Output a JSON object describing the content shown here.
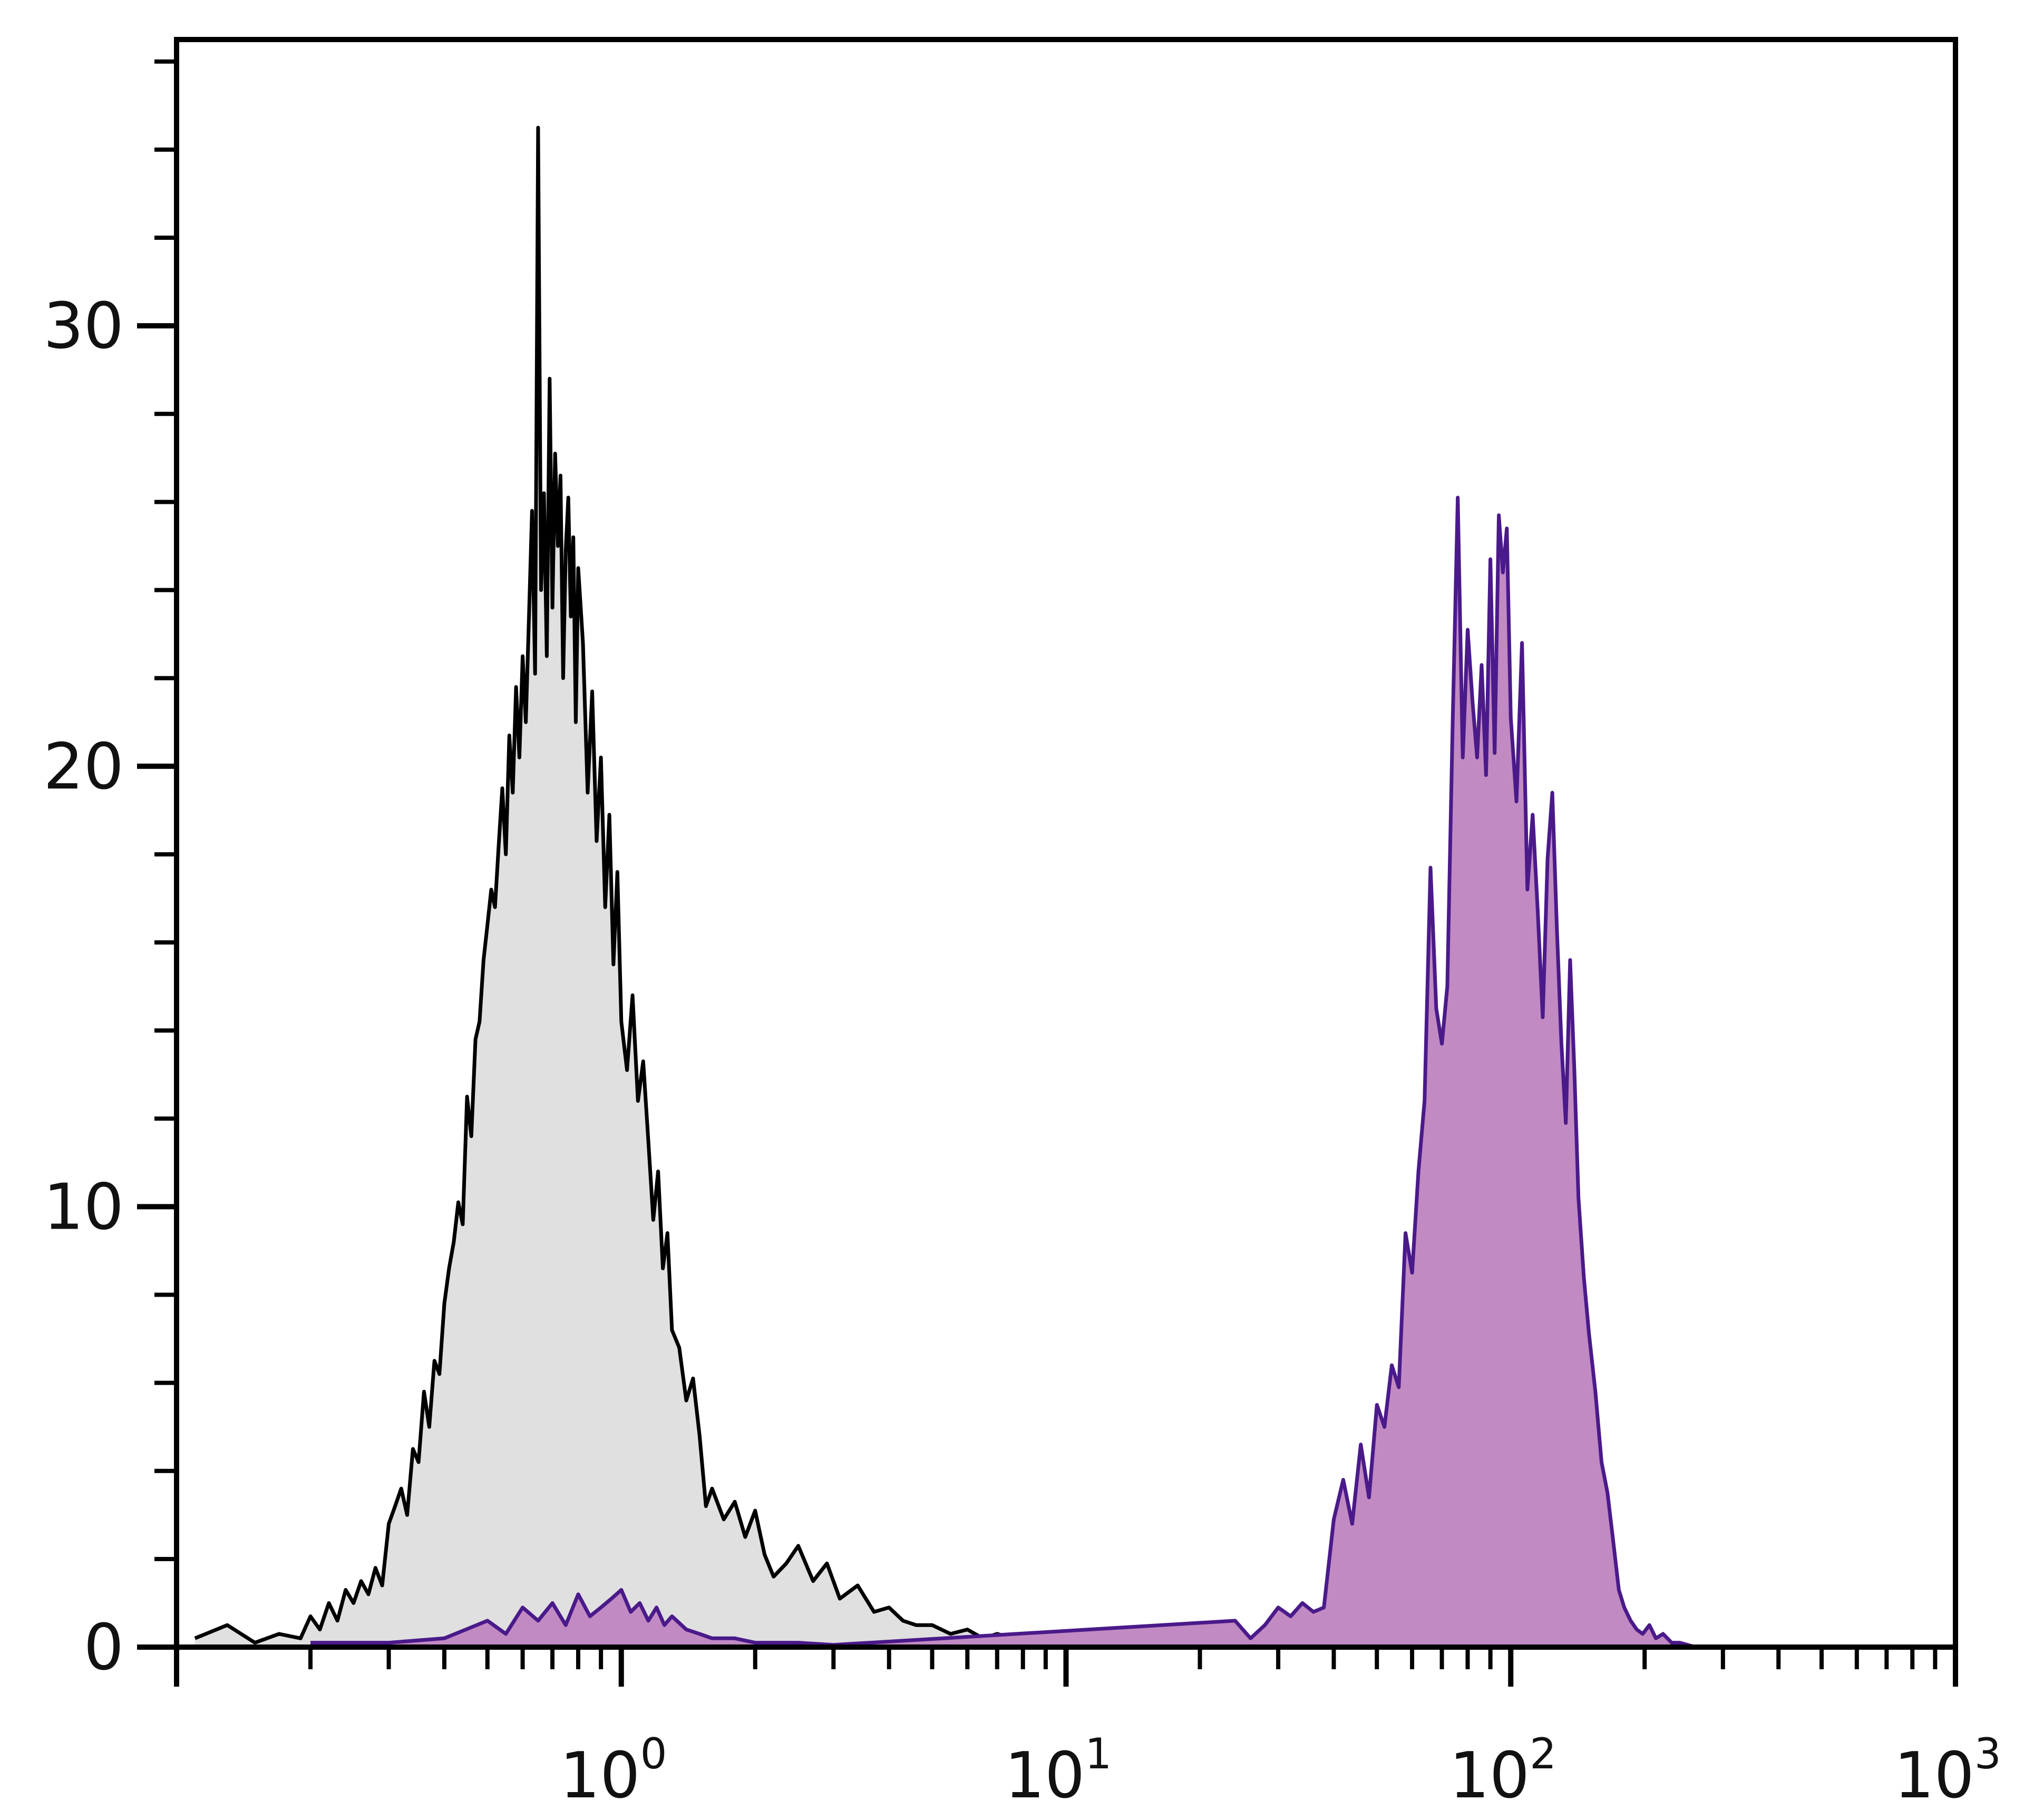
{
  "chart_data": {
    "type": "area",
    "title": "",
    "xlabel": "",
    "ylabel": "",
    "x_scale": "log",
    "xlim": [
      0.1,
      1000
    ],
    "ylim": [
      0,
      36.5
    ],
    "grid": false,
    "legend": "none",
    "x_ticks": [
      {
        "value": 1,
        "base": "10",
        "exp": "0"
      },
      {
        "value": 10,
        "base": "10",
        "exp": "1"
      },
      {
        "value": 100,
        "base": "10",
        "exp": "2"
      },
      {
        "value": 1000,
        "base": "10",
        "exp": "3"
      }
    ],
    "y_ticks": [
      {
        "value": 0,
        "label": "0"
      },
      {
        "value": 10,
        "label": "10"
      },
      {
        "value": 20,
        "label": "20"
      },
      {
        "value": 30,
        "label": "30"
      }
    ],
    "series": [
      {
        "color": "#000000",
        "fill": "#e0e0e0",
        "x": [
          0.11,
          0.13,
          0.15,
          0.17,
          0.19,
          0.2,
          0.21,
          0.22,
          0.23,
          0.24,
          0.25,
          0.26,
          0.27,
          0.28,
          0.29,
          0.3,
          0.31,
          0.32,
          0.33,
          0.34,
          0.35,
          0.36,
          0.37,
          0.38,
          0.39,
          0.4,
          0.41,
          0.42,
          0.43,
          0.44,
          0.45,
          0.46,
          0.47,
          0.48,
          0.49,
          0.5,
          0.51,
          0.52,
          0.53,
          0.54,
          0.55,
          0.56,
          0.57,
          0.58,
          0.59,
          0.6,
          0.61,
          0.62,
          0.63,
          0.64,
          0.65,
          0.66,
          0.67,
          0.68,
          0.69,
          0.7,
          0.71,
          0.72,
          0.73,
          0.74,
          0.75,
          0.76,
          0.77,
          0.78,
          0.79,
          0.8,
          0.82,
          0.84,
          0.86,
          0.88,
          0.9,
          0.92,
          0.94,
          0.96,
          0.98,
          1.0,
          1.03,
          1.06,
          1.09,
          1.12,
          1.15,
          1.18,
          1.21,
          1.24,
          1.27,
          1.3,
          1.35,
          1.4,
          1.45,
          1.5,
          1.55,
          1.6,
          1.7,
          1.8,
          1.9,
          2.0,
          2.1,
          2.2,
          2.35,
          2.5,
          2.7,
          2.9,
          3.1,
          3.4,
          3.7,
          4.0,
          4.3,
          4.6,
          5.0,
          5.5,
          6.0,
          6.5,
          7.0,
          8.0,
          9.0,
          10.0,
          11.0,
          12.0
        ],
        "y": [
          0.2,
          0.5,
          0.1,
          0.3,
          0.2,
          0.7,
          0.4,
          1.0,
          0.6,
          1.3,
          1.0,
          1.5,
          1.2,
          1.8,
          1.4,
          2.8,
          3.2,
          3.6,
          3.0,
          4.5,
          4.2,
          5.8,
          5.0,
          6.5,
          6.2,
          7.8,
          8.6,
          9.2,
          10.1,
          9.6,
          12.5,
          11.6,
          13.8,
          14.2,
          15.6,
          16.4,
          17.2,
          16.8,
          18.2,
          19.5,
          18.0,
          20.7,
          19.4,
          21.8,
          20.2,
          22.5,
          21.0,
          23.4,
          25.8,
          22.1,
          34.5,
          24.0,
          26.2,
          22.5,
          28.8,
          23.6,
          27.1,
          25.0,
          26.6,
          22.0,
          24.9,
          26.1,
          23.4,
          25.2,
          21.0,
          24.5,
          22.8,
          19.4,
          21.7,
          18.3,
          20.2,
          16.8,
          18.9,
          15.5,
          17.6,
          14.2,
          13.1,
          14.8,
          12.4,
          13.3,
          11.5,
          9.7,
          10.8,
          8.6,
          9.4,
          7.2,
          6.8,
          5.6,
          6.1,
          4.8,
          3.2,
          3.6,
          2.9,
          3.3,
          2.5,
          3.1,
          2.1,
          1.6,
          1.9,
          2.3,
          1.5,
          1.9,
          1.1,
          1.4,
          0.8,
          0.9,
          0.6,
          0.5,
          0.5,
          0.3,
          0.4,
          0.2,
          0.3,
          0.15,
          0.1,
          0.05,
          0.05,
          0.0
        ]
      },
      {
        "color": "#4a1a8a",
        "fill": "#c18ac2",
        "x": [
          0.2,
          0.3,
          0.4,
          0.5,
          0.55,
          0.6,
          0.65,
          0.7,
          0.75,
          0.8,
          0.85,
          0.9,
          0.95,
          1.0,
          1.05,
          1.1,
          1.15,
          1.2,
          1.25,
          1.3,
          1.4,
          1.5,
          1.6,
          1.8,
          2.0,
          2.2,
          2.5,
          3.0,
          24.0,
          26.0,
          28.0,
          30.0,
          32.0,
          34.0,
          36.0,
          38.0,
          40.0,
          42.0,
          44.0,
          46.0,
          48.0,
          50.0,
          52.0,
          54.0,
          56.0,
          58.0,
          60.0,
          62.0,
          64.0,
          66.0,
          68.0,
          70.0,
          72.0,
          74.0,
          76.0,
          78.0,
          80.0,
          82.0,
          84.0,
          86.0,
          88.0,
          90.0,
          92.0,
          94.0,
          96.0,
          98.0,
          100.0,
          103.0,
          106.0,
          109.0,
          112.0,
          115.0,
          118.0,
          121.0,
          124.0,
          127.0,
          130.0,
          133.0,
          136.0,
          139.0,
          142.0,
          146.0,
          150.0,
          155.0,
          160.0,
          165.0,
          170.0,
          175.0,
          180.0,
          186.0,
          192.0,
          198.0,
          205.0,
          212.0,
          220.0,
          230.0,
          240.0,
          250.0,
          260.0
        ],
        "y": [
          0.1,
          0.1,
          0.2,
          0.6,
          0.3,
          0.9,
          0.6,
          1.0,
          0.5,
          1.2,
          0.7,
          0.9,
          1.1,
          1.3,
          0.8,
          1.0,
          0.6,
          0.9,
          0.5,
          0.7,
          0.4,
          0.3,
          0.2,
          0.2,
          0.1,
          0.1,
          0.1,
          0.05,
          0.6,
          0.2,
          0.5,
          0.9,
          0.7,
          1.0,
          0.8,
          0.9,
          2.9,
          3.8,
          2.8,
          4.6,
          3.4,
          5.5,
          5.0,
          6.4,
          5.9,
          9.4,
          8.5,
          10.8,
          12.4,
          17.7,
          14.5,
          13.7,
          15.0,
          20.9,
          26.1,
          20.2,
          23.1,
          21.5,
          20.2,
          22.3,
          19.8,
          24.7,
          20.3,
          25.7,
          24.4,
          25.4,
          21.1,
          19.2,
          22.8,
          17.2,
          18.9,
          16.7,
          14.3,
          17.9,
          19.4,
          16.3,
          13.7,
          11.9,
          15.6,
          13.1,
          10.2,
          8.4,
          7.1,
          5.8,
          4.2,
          3.5,
          2.4,
          1.3,
          0.9,
          0.6,
          0.4,
          0.3,
          0.5,
          0.2,
          0.3,
          0.1,
          0.1,
          0.05,
          0.0
        ]
      }
    ]
  }
}
